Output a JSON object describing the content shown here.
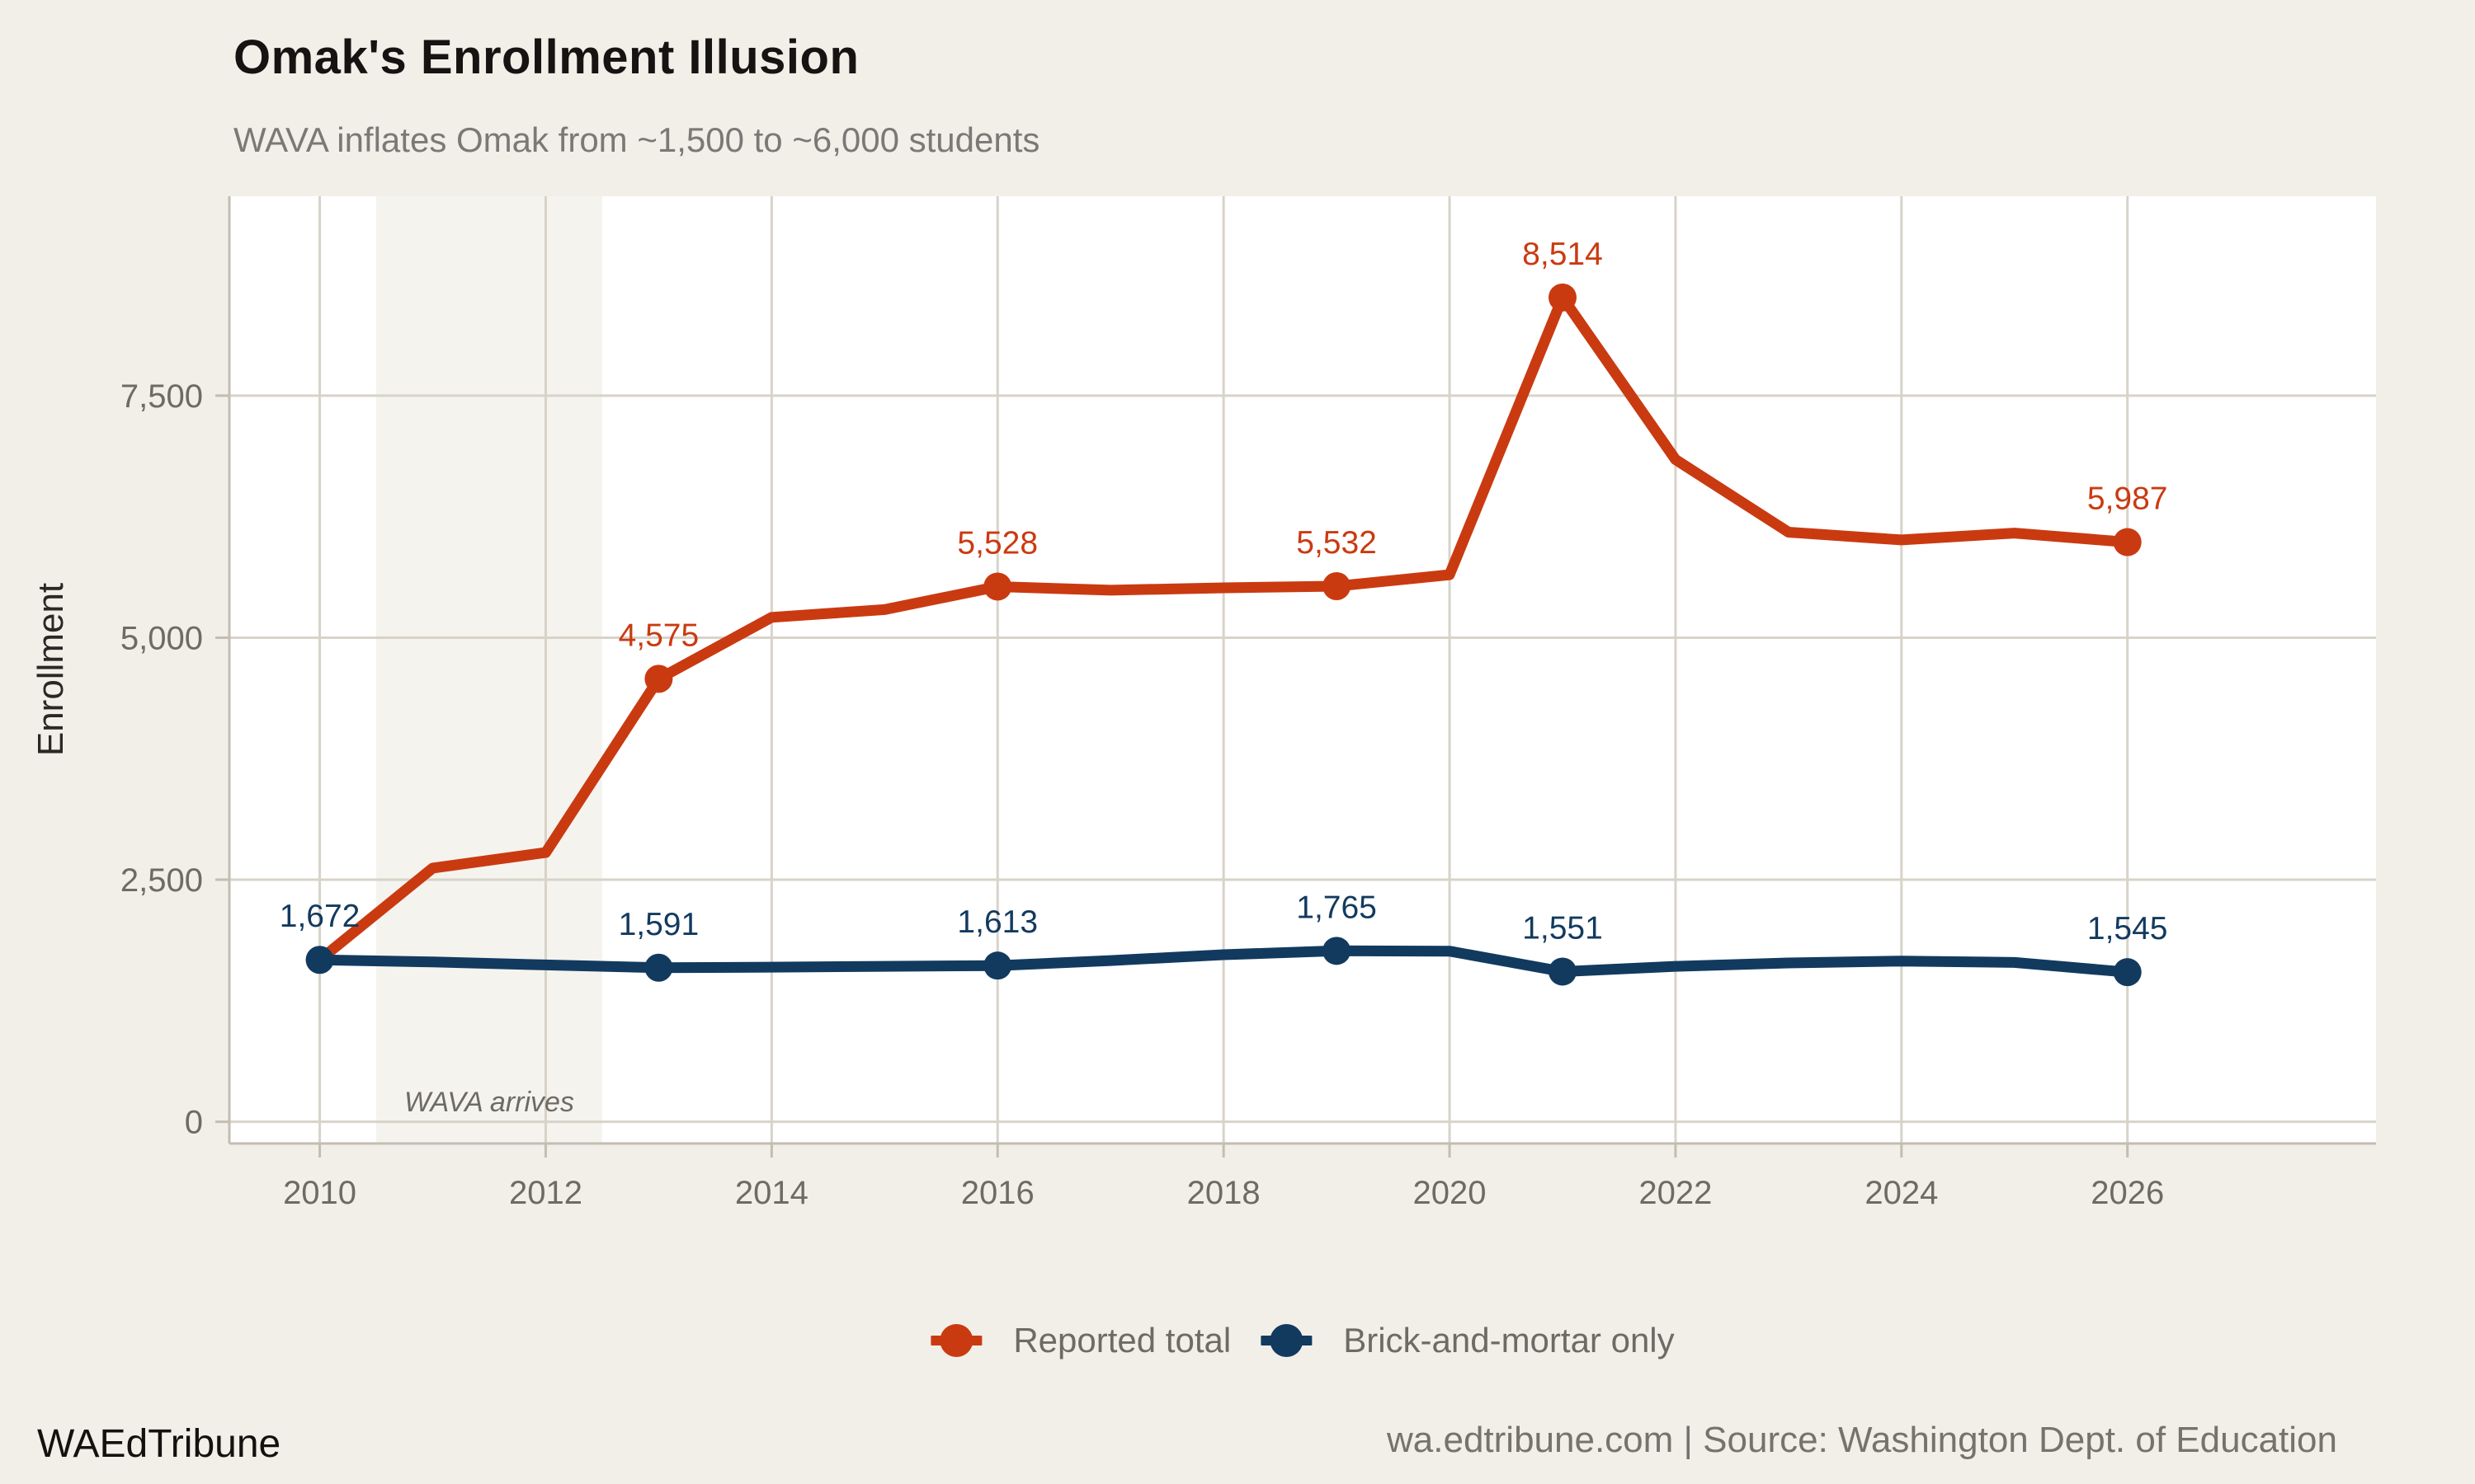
{
  "colors": {
    "background": "#f2efe9",
    "panel": "#ffffff",
    "band": "#f5f3ee",
    "grid": "#d8d3c9",
    "axis": "#c3bdb2",
    "tick_text": "#6e6a64",
    "title_text": "#161412",
    "subtitle_text": "#7b7875",
    "axis_title_text": "#2a2825",
    "annotation_text": "#6e6a64"
  },
  "chart_data": {
    "type": "line",
    "title": "Omak's Enrollment Illusion",
    "subtitle": "WAVA inflates Omak from ~1,500 to ~6,000 students",
    "xlabel": "",
    "ylabel": "Enrollment",
    "grid": true,
    "legend_position": "bottom-center",
    "xlim": [
      2009.2,
      2028.2
    ],
    "ylim": [
      -225,
      9560
    ],
    "x": [
      2010,
      2011,
      2012,
      2013,
      2014,
      2015,
      2016,
      2017,
      2018,
      2019,
      2020,
      2021,
      2022,
      2023,
      2024,
      2025,
      2026
    ],
    "x_ticks": [
      {
        "value": 2010,
        "label": "2010"
      },
      {
        "value": 2012,
        "label": "2012"
      },
      {
        "value": 2014,
        "label": "2014"
      },
      {
        "value": 2016,
        "label": "2016"
      },
      {
        "value": 2018,
        "label": "2018"
      },
      {
        "value": 2020,
        "label": "2020"
      },
      {
        "value": 2022,
        "label": "2022"
      },
      {
        "value": 2024,
        "label": "2024"
      },
      {
        "value": 2026,
        "label": "2026"
      }
    ],
    "y_ticks": [
      {
        "value": 0,
        "label": "0"
      },
      {
        "value": 2500,
        "label": "2,500"
      },
      {
        "value": 5000,
        "label": "5,000"
      },
      {
        "value": 7500,
        "label": "7,500"
      }
    ],
    "annotation": {
      "text": "WAVA arrives",
      "band_from": 2010.5,
      "band_to": 2012.5
    },
    "series": [
      {
        "name": "Reported total",
        "color": "#ca3a11",
        "values": [
          1672,
          2620,
          2780,
          4575,
          5210,
          5290,
          5528,
          5490,
          5515,
          5532,
          5650,
          8514,
          6840,
          6090,
          6010,
          6080,
          5987
        ],
        "point_labels": [
          {
            "x": 2013,
            "label": "4,575"
          },
          {
            "x": 2016,
            "label": "5,528"
          },
          {
            "x": 2019,
            "label": "5,532"
          },
          {
            "x": 2021,
            "label": "8,514"
          },
          {
            "x": 2026,
            "label": "5,987"
          }
        ]
      },
      {
        "name": "Brick-and-mortar only",
        "color": "#123a5f",
        "values": [
          1672,
          1650,
          1620,
          1591,
          1597,
          1605,
          1613,
          1665,
          1725,
          1765,
          1762,
          1551,
          1605,
          1640,
          1660,
          1645,
          1545
        ],
        "point_labels": [
          {
            "x": 2010,
            "label": "1,672"
          },
          {
            "x": 2013,
            "label": "1,591"
          },
          {
            "x": 2016,
            "label": "1,613"
          },
          {
            "x": 2019,
            "label": "1,765"
          },
          {
            "x": 2021,
            "label": "1,551"
          },
          {
            "x": 2026,
            "label": "1,545"
          }
        ]
      }
    ]
  },
  "footer": {
    "brand": "WAEdTribune",
    "source": "wa.edtribune.com | Source: Washington Dept. of Education"
  }
}
